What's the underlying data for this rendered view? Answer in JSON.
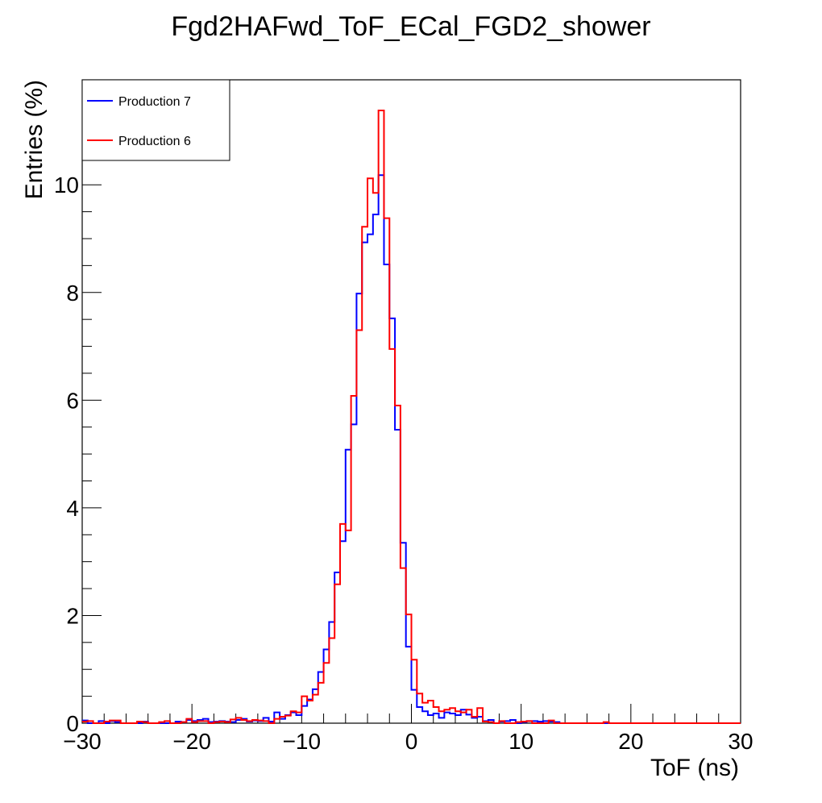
{
  "chart_data": {
    "type": "line",
    "title": "Fgd2HAFwd_ToF_ECal_FGD2_shower",
    "xlabel": "ToF (ns)",
    "ylabel": "Entries (%)",
    "xlim": [
      -30,
      30
    ],
    "ylim": [
      0,
      11.95
    ],
    "x_ticks": [
      -30,
      -20,
      -10,
      0,
      10,
      20,
      30
    ],
    "x_tick_labels": [
      "−30",
      "−20",
      "−10",
      "0",
      "10",
      "20",
      "30"
    ],
    "y_ticks": [
      0,
      2,
      4,
      6,
      8,
      10
    ],
    "y_tick_labels": [
      "0",
      "2",
      "4",
      "6",
      "8",
      "10"
    ],
    "grid": false,
    "legend_position": "top-left",
    "bin_edges": [
      -30.0,
      -29.5,
      -29.0,
      -28.5,
      -28.0,
      -27.5,
      -27.0,
      -26.5,
      -26.0,
      -25.5,
      -25.0,
      -24.5,
      -24.0,
      -23.5,
      -23.0,
      -22.5,
      -22.0,
      -21.5,
      -21.0,
      -20.5,
      -20.0,
      -19.5,
      -19.0,
      -18.5,
      -18.0,
      -17.5,
      -17.0,
      -16.5,
      -16.0,
      -15.5,
      -15.0,
      -14.5,
      -14.0,
      -13.5,
      -13.0,
      -12.5,
      -12.0,
      -11.5,
      -11.0,
      -10.5,
      -10.0,
      -9.5,
      -9.0,
      -8.5,
      -8.0,
      -7.5,
      -7.0,
      -6.5,
      -6.0,
      -5.5,
      -5.0,
      -4.5,
      -4.0,
      -3.5,
      -3.0,
      -2.5,
      -2.0,
      -1.5,
      -1.0,
      -0.5,
      0.0,
      0.5,
      1.0,
      1.5,
      2.0,
      2.5,
      3.0,
      3.5,
      4.0,
      4.5,
      5.0,
      5.5,
      6.0,
      6.5,
      7.0,
      7.5,
      8.0,
      8.5,
      9.0,
      9.5,
      10.0,
      10.5,
      11.0,
      11.5,
      12.0,
      12.5,
      13.0,
      13.5,
      14.0,
      14.5,
      15.0,
      15.5,
      16.0,
      16.5,
      17.0,
      17.5,
      18.0,
      18.5,
      19.0,
      19.5,
      20.0,
      20.5,
      21.0,
      21.5,
      22.0,
      22.5,
      23.0,
      23.5,
      24.0,
      24.5,
      25.0,
      25.5,
      26.0,
      26.5,
      27.0,
      27.5,
      28.0,
      28.5,
      29.0,
      29.5,
      30.0
    ],
    "series": [
      {
        "name": "Production 7",
        "color": "#0000ff",
        "values": [
          0.05,
          0,
          0,
          0.04,
          0,
          0.04,
          0.02,
          0,
          0,
          0,
          0,
          0.03,
          0,
          0,
          0,
          0,
          0,
          0.03,
          0.02,
          0.06,
          0.04,
          0.06,
          0.08,
          0.02,
          0.03,
          0.04,
          0.03,
          0.02,
          0.06,
          0.08,
          0.03,
          0.05,
          0.04,
          0.1,
          0.03,
          0.2,
          0.08,
          0.15,
          0.2,
          0.15,
          0.32,
          0.44,
          0.63,
          0.95,
          1.37,
          1.88,
          2.8,
          3.38,
          5.08,
          5.55,
          7.98,
          8.93,
          9.08,
          9.45,
          10.18,
          8.52,
          7.52,
          5.45,
          3.35,
          1.42,
          0.62,
          0.3,
          0.22,
          0.15,
          0.18,
          0.1,
          0.2,
          0.18,
          0.15,
          0.25,
          0.16,
          0.1,
          0.12,
          0.04,
          0.06,
          0,
          0.03,
          0.04,
          0.06,
          0,
          0.02,
          0.04,
          0.04,
          0.03,
          0.04,
          0.03,
          0.02,
          0,
          0,
          0,
          0,
          0,
          0,
          0,
          0,
          0,
          0,
          0,
          0,
          0,
          0,
          0,
          0,
          0,
          0,
          0,
          0,
          0,
          0,
          0,
          0,
          0,
          0,
          0,
          0,
          0,
          0,
          0,
          0,
          0
        ]
      },
      {
        "name": "Production 6",
        "color": "#ff0000",
        "values": [
          0.03,
          0.04,
          0,
          0,
          0.03,
          0.05,
          0.05,
          0,
          0,
          0,
          0.03,
          0.02,
          0,
          0,
          0.02,
          0.04,
          0,
          0,
          0.02,
          0.08,
          0.02,
          0.04,
          0.04,
          0,
          0.02,
          0.03,
          0.02,
          0.07,
          0.1,
          0.06,
          0.04,
          0.06,
          0.05,
          0.04,
          0,
          0.08,
          0.12,
          0.14,
          0.22,
          0.2,
          0.5,
          0.42,
          0.53,
          0.75,
          1.12,
          1.58,
          2.58,
          3.7,
          3.58,
          6.08,
          7.3,
          9.22,
          10.12,
          9.85,
          11.38,
          9.38,
          6.95,
          5.9,
          2.88,
          2.02,
          1.18,
          0.55,
          0.38,
          0.42,
          0.3,
          0.22,
          0.25,
          0.28,
          0.22,
          0.2,
          0.25,
          0.12,
          0.28,
          0.03,
          0.02,
          0,
          0.04,
          0,
          0,
          0.02,
          0.03,
          0.04,
          0,
          0,
          0,
          0.05,
          0,
          0,
          0,
          0,
          0,
          0,
          0,
          0,
          0,
          0.02,
          0,
          0,
          0,
          0,
          0,
          0,
          0,
          0,
          0,
          0,
          0,
          0,
          0,
          0,
          0,
          0,
          0,
          0,
          0,
          0,
          0,
          0,
          0,
          0
        ]
      }
    ]
  }
}
